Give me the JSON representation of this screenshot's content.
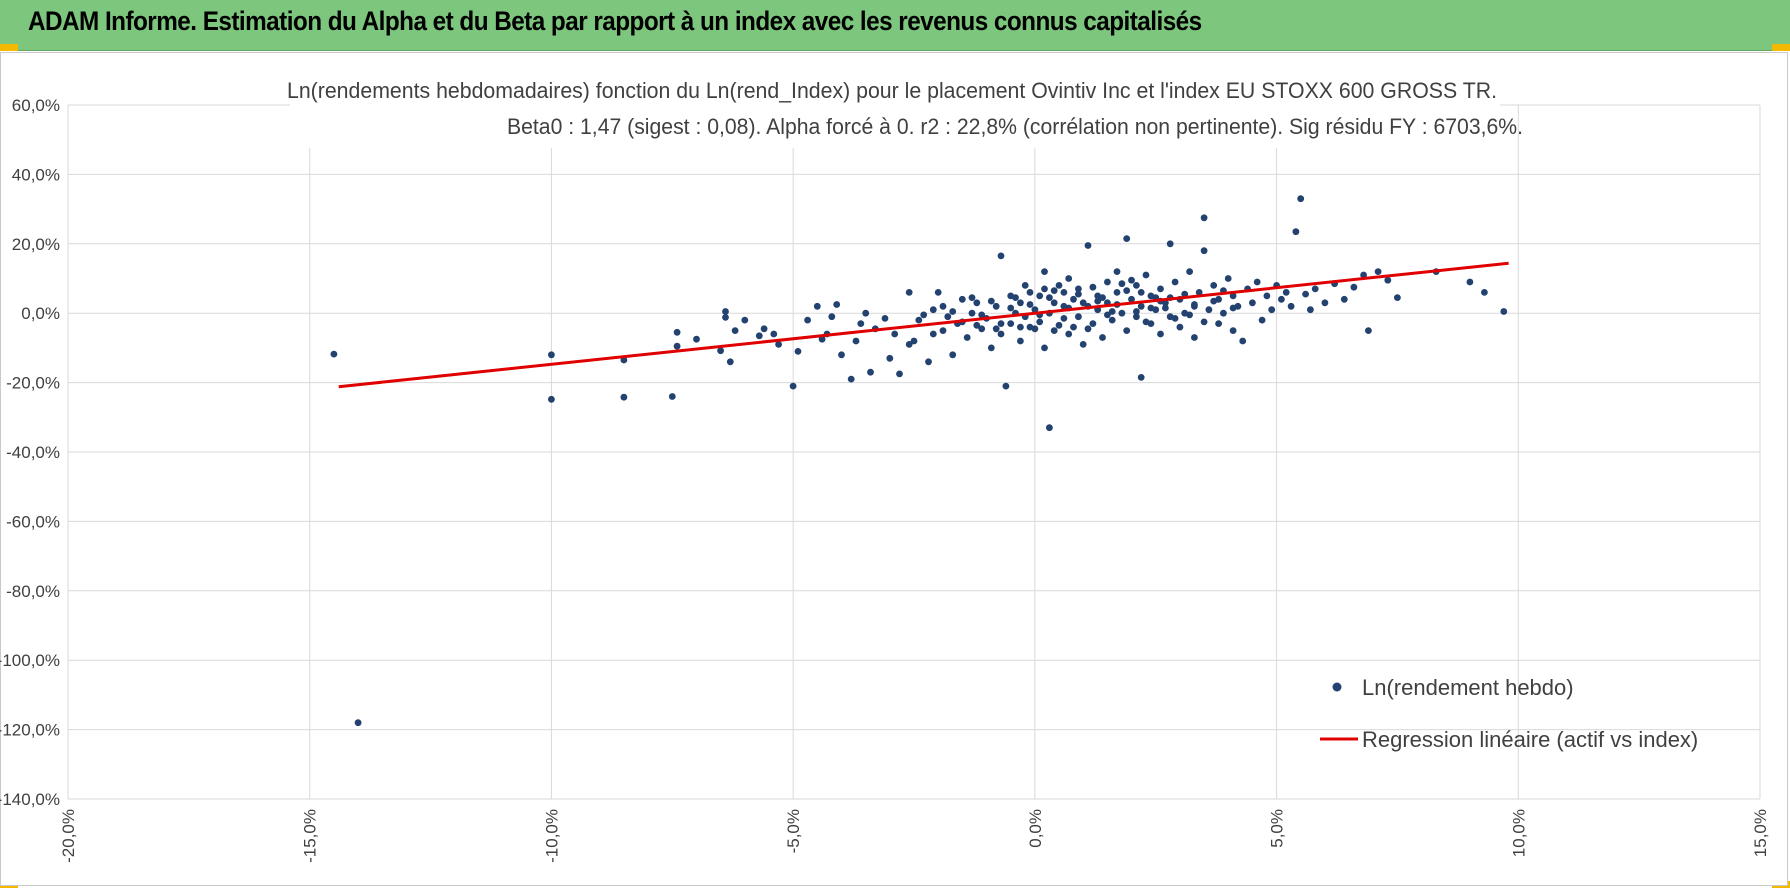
{
  "header": {
    "title": "ADAM Informe. Estimation du Alpha et du Beta par rapport à un index avec les revenus connus capitalisés"
  },
  "colors": {
    "header_bg": "#7dc67d",
    "accent_corner": "#f2b900",
    "points": "#24426f",
    "regression_line": "#e00000",
    "gridlines": "#d9d9d9"
  },
  "chart_data": {
    "type": "scatter",
    "title_line1": "Ln(rendements hebdomadaires) fonction du Ln(rend_Index) pour le placement Ovintiv Inc et l'index EU STOXX 600 GROSS TR.",
    "title_line2": "Beta0 : 1,47 (sigest : 0,08).  Alpha forcé à 0. r2 : 22,8% (corrélation non pertinente). Sig résidu FY : 6703,6%.",
    "xlim": [
      -0.2,
      0.15
    ],
    "ylim": [
      -1.4,
      0.6
    ],
    "x_ticks": [
      "-20,0%",
      "-15,0%",
      "-10,0%",
      "-5,0%",
      "0,0%",
      "5,0%",
      "10,0%",
      "15,0%"
    ],
    "y_ticks": [
      "60,0%",
      "40,0%",
      "20,0%",
      "0,0%",
      "-20,0%",
      "-40,0%",
      "-60,0%",
      "-80,0%",
      "-100,0%",
      "-120,0%",
      "-140,0%"
    ],
    "grid": true,
    "legend_position": "bottom-right",
    "series": [
      {
        "name": "Ln(rendement hebdo)",
        "kind": "points",
        "points": [
          [
            -0.145,
            -0.118
          ],
          [
            -0.14,
            -1.18
          ],
          [
            -0.1,
            -0.12
          ],
          [
            -0.1,
            -0.248
          ],
          [
            -0.085,
            -0.242
          ],
          [
            -0.085,
            -0.135
          ],
          [
            -0.075,
            -0.24
          ],
          [
            -0.074,
            -0.055
          ],
          [
            -0.074,
            -0.095
          ],
          [
            -0.07,
            -0.075
          ],
          [
            -0.065,
            -0.108
          ],
          [
            -0.064,
            0.005
          ],
          [
            -0.064,
            -0.012
          ],
          [
            -0.063,
            -0.14
          ],
          [
            -0.062,
            -0.05
          ],
          [
            -0.06,
            -0.02
          ],
          [
            -0.057,
            -0.065
          ],
          [
            -0.056,
            -0.045
          ],
          [
            -0.054,
            -0.06
          ],
          [
            -0.053,
            -0.09
          ],
          [
            -0.05,
            -0.21
          ],
          [
            -0.049,
            -0.11
          ],
          [
            -0.047,
            -0.02
          ],
          [
            -0.045,
            0.02
          ],
          [
            -0.044,
            -0.075
          ],
          [
            -0.043,
            -0.06
          ],
          [
            -0.042,
            -0.01
          ],
          [
            -0.041,
            0.025
          ],
          [
            -0.04,
            -0.12
          ],
          [
            -0.038,
            -0.19
          ],
          [
            -0.037,
            -0.08
          ],
          [
            -0.036,
            -0.03
          ],
          [
            -0.035,
            0.0
          ],
          [
            -0.034,
            -0.17
          ],
          [
            -0.033,
            -0.045
          ],
          [
            -0.031,
            -0.015
          ],
          [
            -0.03,
            -0.13
          ],
          [
            -0.029,
            -0.06
          ],
          [
            -0.028,
            -0.175
          ],
          [
            -0.026,
            0.06
          ],
          [
            -0.025,
            -0.08
          ],
          [
            -0.024,
            -0.02
          ],
          [
            -0.022,
            -0.14
          ],
          [
            -0.021,
            0.01
          ],
          [
            -0.02,
            0.06
          ],
          [
            -0.019,
            -0.05
          ],
          [
            -0.018,
            -0.01
          ],
          [
            -0.017,
            -0.12
          ],
          [
            -0.016,
            -0.03
          ],
          [
            -0.015,
            0.04
          ],
          [
            -0.014,
            -0.07
          ],
          [
            -0.013,
            0.0
          ],
          [
            -0.012,
            0.03
          ],
          [
            -0.011,
            -0.045
          ],
          [
            -0.01,
            -0.015
          ],
          [
            -0.009,
            -0.1
          ],
          [
            -0.008,
            0.02
          ],
          [
            -0.007,
            0.165
          ],
          [
            -0.007,
            -0.06
          ],
          [
            -0.006,
            -0.21
          ],
          [
            -0.005,
            -0.03
          ],
          [
            -0.005,
            0.05
          ],
          [
            -0.004,
            0.0
          ],
          [
            -0.003,
            -0.08
          ],
          [
            -0.003,
            0.03
          ],
          [
            -0.002,
            -0.01
          ],
          [
            -0.001,
            0.06
          ],
          [
            -0.001,
            -0.04
          ],
          [
            0.0,
            0.01
          ],
          [
            0.001,
            -0.025
          ],
          [
            0.001,
            0.05
          ],
          [
            0.002,
            -0.1
          ],
          [
            0.002,
            0.12
          ],
          [
            0.003,
            0.0
          ],
          [
            0.003,
            -0.33
          ],
          [
            0.004,
            0.03
          ],
          [
            0.004,
            -0.05
          ],
          [
            0.005,
            0.08
          ],
          [
            0.006,
            -0.015
          ],
          [
            0.006,
            0.02
          ],
          [
            0.007,
            0.1
          ],
          [
            0.007,
            -0.06
          ],
          [
            0.008,
            0.04
          ],
          [
            0.009,
            -0.01
          ],
          [
            0.009,
            0.07
          ],
          [
            0.01,
            -0.09
          ],
          [
            0.011,
            0.02
          ],
          [
            0.011,
            0.195
          ],
          [
            0.012,
            -0.03
          ],
          [
            0.013,
            0.05
          ],
          [
            0.013,
            0.01
          ],
          [
            0.014,
            -0.07
          ],
          [
            0.015,
            0.09
          ],
          [
            0.015,
            0.03
          ],
          [
            0.016,
            -0.02
          ],
          [
            0.017,
            0.06
          ],
          [
            0.017,
            0.12
          ],
          [
            0.018,
            0.0
          ],
          [
            0.019,
            -0.05
          ],
          [
            0.019,
            0.215
          ],
          [
            0.02,
            0.04
          ],
          [
            0.021,
            -0.01
          ],
          [
            0.021,
            0.08
          ],
          [
            0.022,
            -0.185
          ],
          [
            0.022,
            0.02
          ],
          [
            0.023,
            0.11
          ],
          [
            0.024,
            -0.03
          ],
          [
            0.024,
            0.05
          ],
          [
            0.025,
            0.01
          ],
          [
            0.026,
            0.07
          ],
          [
            0.026,
            -0.06
          ],
          [
            0.027,
            0.03
          ],
          [
            0.028,
            0.2
          ],
          [
            0.028,
            -0.01
          ],
          [
            0.029,
            0.09
          ],
          [
            0.03,
            0.04
          ],
          [
            0.03,
            -0.04
          ],
          [
            0.031,
            0.0
          ],
          [
            0.032,
            0.12
          ],
          [
            0.033,
            0.02
          ],
          [
            0.033,
            -0.07
          ],
          [
            0.034,
            0.06
          ],
          [
            0.035,
            0.275
          ],
          [
            0.035,
            0.18
          ],
          [
            0.036,
            0.01
          ],
          [
            0.037,
            0.08
          ],
          [
            0.038,
            -0.03
          ],
          [
            0.038,
            0.04
          ],
          [
            0.039,
            0.0
          ],
          [
            0.04,
            0.1
          ],
          [
            0.041,
            0.05
          ],
          [
            0.041,
            -0.05
          ],
          [
            0.042,
            0.02
          ],
          [
            0.043,
            -0.08
          ],
          [
            0.044,
            0.07
          ],
          [
            0.045,
            0.03
          ],
          [
            0.046,
            0.09
          ],
          [
            0.047,
            -0.02
          ],
          [
            0.048,
            0.05
          ],
          [
            0.049,
            0.01
          ],
          [
            0.05,
            0.08
          ],
          [
            0.051,
            0.04
          ],
          [
            0.052,
            0.06
          ],
          [
            0.053,
            0.02
          ],
          [
            0.054,
            0.235
          ],
          [
            0.055,
            0.33
          ],
          [
            0.056,
            0.055
          ],
          [
            0.057,
            0.01
          ],
          [
            0.058,
            0.07
          ],
          [
            0.06,
            0.03
          ],
          [
            0.062,
            0.085
          ],
          [
            0.064,
            0.04
          ],
          [
            0.066,
            0.075
          ],
          [
            0.068,
            0.11
          ],
          [
            0.069,
            -0.05
          ],
          [
            0.071,
            0.12
          ],
          [
            0.073,
            0.095
          ],
          [
            0.075,
            0.045
          ],
          [
            0.083,
            0.12
          ],
          [
            0.09,
            0.09
          ],
          [
            0.093,
            0.06
          ],
          [
            0.097,
            0.005
          ],
          [
            -0.026,
            -0.09
          ],
          [
            -0.023,
            -0.005
          ],
          [
            -0.021,
            -0.06
          ],
          [
            -0.019,
            0.02
          ],
          [
            -0.017,
            0.005
          ],
          [
            -0.015,
            -0.025
          ],
          [
            -0.013,
            0.045
          ],
          [
            -0.011,
            -0.005
          ],
          [
            -0.009,
            0.035
          ],
          [
            -0.007,
            -0.03
          ],
          [
            -0.005,
            0.015
          ],
          [
            -0.003,
            -0.04
          ],
          [
            -0.001,
            0.025
          ],
          [
            0.001,
            -0.005
          ],
          [
            0.003,
            0.045
          ],
          [
            0.005,
            -0.035
          ],
          [
            0.007,
            0.015
          ],
          [
            0.009,
            0.055
          ],
          [
            0.011,
            -0.045
          ],
          [
            0.013,
            0.035
          ],
          [
            0.015,
            -0.005
          ],
          [
            0.017,
            0.025
          ],
          [
            0.019,
            0.065
          ],
          [
            0.021,
            0.005
          ],
          [
            0.023,
            -0.025
          ],
          [
            0.025,
            0.045
          ],
          [
            0.027,
            0.015
          ],
          [
            0.029,
            -0.015
          ],
          [
            0.031,
            0.055
          ],
          [
            0.033,
            0.025
          ],
          [
            0.035,
            -0.025
          ],
          [
            0.037,
            0.035
          ],
          [
            0.039,
            0.065
          ],
          [
            0.041,
            0.015
          ],
          [
            -0.012,
            -0.035
          ],
          [
            -0.008,
            -0.045
          ],
          [
            -0.004,
            0.045
          ],
          [
            0.0,
            -0.045
          ],
          [
            0.004,
            0.065
          ],
          [
            0.008,
            -0.04
          ],
          [
            0.012,
            0.075
          ],
          [
            0.016,
            0.005
          ],
          [
            0.02,
            0.095
          ],
          [
            0.024,
            0.015
          ],
          [
            0.028,
            0.045
          ],
          [
            0.032,
            -0.005
          ],
          [
            -0.002,
            0.08
          ],
          [
            0.002,
            0.07
          ],
          [
            0.006,
            0.06
          ],
          [
            0.01,
            0.03
          ],
          [
            0.014,
            0.045
          ],
          [
            0.018,
            0.085
          ],
          [
            0.022,
            0.06
          ],
          [
            0.026,
            0.035
          ]
        ]
      },
      {
        "name": "Regression linéaire (actif vs index)",
        "kind": "line",
        "points": [
          [
            -0.144,
            -0.212
          ],
          [
            0.098,
            0.144
          ]
        ]
      }
    ]
  }
}
